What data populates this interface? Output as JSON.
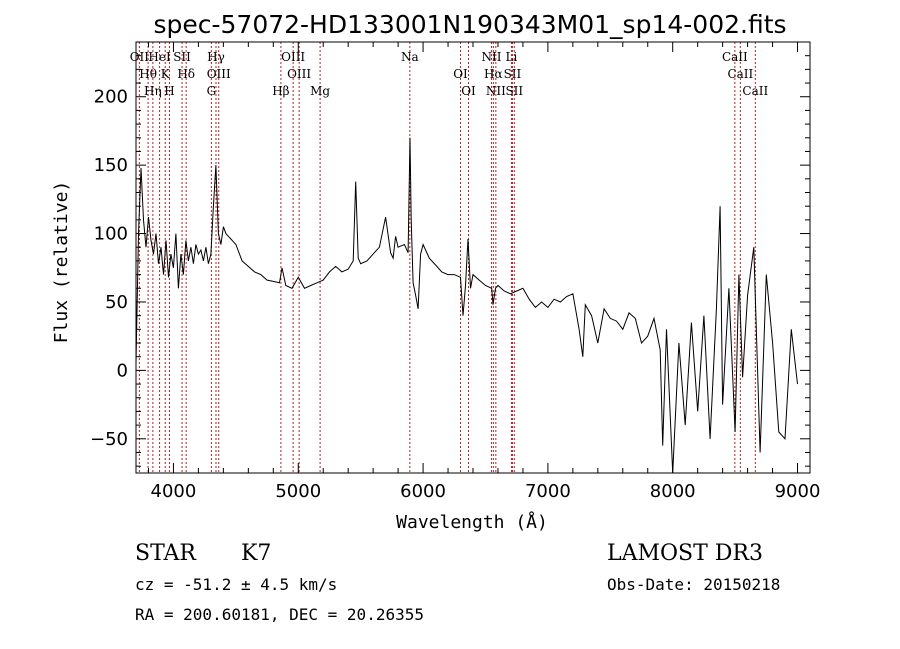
{
  "chart_data": {
    "type": "line",
    "title": "spec-57072-HD133001N190343M01_sp14-002.fits",
    "xlabel": "Wavelength (Å)",
    "ylabel": "Flux (relative)",
    "xlim": [
      3700,
      9100
    ],
    "ylim": [
      -75,
      240
    ],
    "xticks": [
      4000,
      5000,
      6000,
      7000,
      8000,
      9000
    ],
    "yticks": [
      -50,
      0,
      50,
      100,
      150,
      200
    ],
    "grid": false,
    "series": [
      {
        "x": [
          3700,
          3720,
          3740,
          3760,
          3780,
          3800,
          3820,
          3840,
          3860,
          3880,
          3900,
          3920,
          3940,
          3960,
          3980,
          4000,
          4020,
          4040,
          4060,
          4080,
          4100,
          4120,
          4140,
          4160,
          4180,
          4200,
          4220,
          4240,
          4260,
          4280,
          4300,
          4320,
          4340,
          4360,
          4380,
          4400,
          4420,
          4440,
          4460,
          4480,
          4500,
          4550,
          4600,
          4650,
          4700,
          4750,
          4800,
          4850,
          4870,
          4900,
          4950,
          5000,
          5050,
          5100,
          5150,
          5200,
          5250,
          5300,
          5350,
          5400,
          5440,
          5460,
          5480,
          5500,
          5550,
          5600,
          5650,
          5700,
          5740,
          5760,
          5780,
          5800,
          5850,
          5880,
          5895,
          5905,
          5920,
          5940,
          5960,
          5980,
          6000,
          6050,
          6100,
          6150,
          6200,
          6250,
          6300,
          6320,
          6340,
          6360,
          6380,
          6400,
          6450,
          6500,
          6550,
          6560,
          6580,
          6600,
          6650,
          6700,
          6750,
          6800,
          6850,
          6900,
          6950,
          7000,
          7050,
          7100,
          7150,
          7200,
          7250,
          7280,
          7300,
          7350,
          7400,
          7450,
          7500,
          7550,
          7600,
          7650,
          7700,
          7750,
          7800,
          7850,
          7900,
          7920,
          7950,
          8000,
          8050,
          8100,
          8150,
          8200,
          8250,
          8300,
          8350,
          8380,
          8400,
          8450,
          8500,
          8530,
          8560,
          8600,
          8650,
          8700,
          8750,
          8800,
          8850,
          8900,
          8950,
          9000
        ],
        "y": [
          5,
          100,
          148,
          110,
          90,
          112,
          95,
          85,
          100,
          78,
          90,
          70,
          95,
          68,
          85,
          75,
          100,
          60,
          85,
          70,
          95,
          80,
          90,
          78,
          92,
          85,
          88,
          80,
          90,
          78,
          85,
          120,
          150,
          100,
          92,
          105,
          100,
          98,
          96,
          94,
          92,
          80,
          76,
          72,
          70,
          66,
          65,
          64,
          75,
          62,
          60,
          68,
          60,
          62,
          64,
          66,
          72,
          76,
          72,
          74,
          80,
          138,
          82,
          78,
          80,
          85,
          90,
          112,
          86,
          82,
          98,
          90,
          92,
          86,
          170,
          110,
          64,
          55,
          45,
          85,
          92,
          82,
          77,
          72,
          70,
          70,
          68,
          40,
          62,
          96,
          60,
          70,
          66,
          62,
          60,
          48,
          60,
          62,
          58,
          56,
          58,
          60,
          52,
          46,
          50,
          46,
          52,
          50,
          54,
          56,
          30,
          10,
          48,
          40,
          20,
          45,
          38,
          36,
          30,
          42,
          38,
          20,
          25,
          38,
          15,
          -55,
          30,
          -75,
          20,
          -40,
          35,
          -30,
          40,
          -50,
          45,
          120,
          -25,
          60,
          -45,
          70,
          -5,
          55,
          90,
          -60,
          70,
          20,
          -45,
          -50,
          30,
          -10
        ]
      }
    ],
    "emission_lines": [
      {
        "name": "OII",
        "x": 3727
      },
      {
        "name": "Hθ",
        "x": 3797
      },
      {
        "name": "Hη",
        "x": 3835
      },
      {
        "name": "HeI",
        "x": 3889
      },
      {
        "name": "K",
        "x": 3934
      },
      {
        "name": "H",
        "x": 3968
      },
      {
        "name": "SII",
        "x": 4069
      },
      {
        "name": "Hδ",
        "x": 4102
      },
      {
        "name": "G",
        "x": 4304
      },
      {
        "name": "Hγ",
        "x": 4341
      },
      {
        "name": "OIII",
        "x": 4363
      },
      {
        "name": "Hβ",
        "x": 4861
      },
      {
        "name": "OIII",
        "x": 4959
      },
      {
        "name": "OIII",
        "x": 5007
      },
      {
        "name": "Mg",
        "x": 5175
      },
      {
        "name": "Na",
        "x": 5894
      },
      {
        "name": "OI",
        "x": 6300
      },
      {
        "name": "OI",
        "x": 6364
      },
      {
        "name": "NII",
        "x": 6548
      },
      {
        "name": "Hα",
        "x": 6563
      },
      {
        "name": "NII",
        "x": 6583
      },
      {
        "name": "Li",
        "x": 6708
      },
      {
        "name": "SII",
        "x": 6716
      },
      {
        "name": "SII",
        "x": 6731
      },
      {
        "name": "CaII",
        "x": 8498
      },
      {
        "name": "CaII",
        "x": 8542
      },
      {
        "name": "CaII",
        "x": 8662
      }
    ]
  },
  "info": {
    "object_class": "STAR",
    "subclass": "K7",
    "survey": "LAMOST DR3",
    "redshift": "cz = -51.2 ± 4.5 km/s",
    "obs_date": "Obs-Date: 20150218",
    "coords": "RA = 200.60181, DEC =  20.26355"
  }
}
